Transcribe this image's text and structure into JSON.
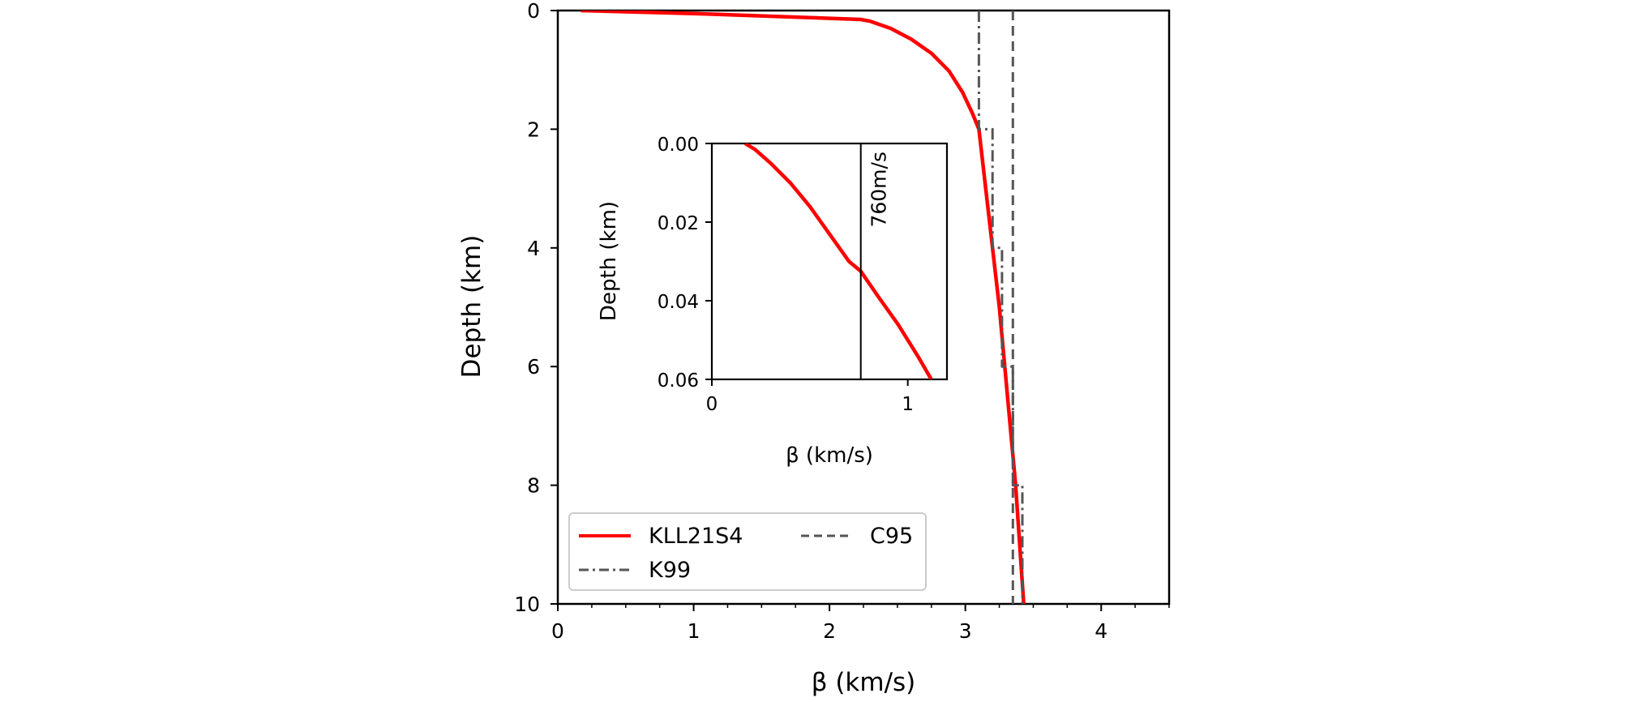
{
  "chart_data": [
    {
      "type": "line",
      "xlabel": "β (km/s)",
      "ylabel": "Depth (km)",
      "xlim": [
        0,
        4.5
      ],
      "ylim": [
        10,
        0
      ],
      "y_inverted": true,
      "x_ticks": [
        "0",
        "1",
        "2",
        "3",
        "4"
      ],
      "y_ticks": [
        "0",
        "2",
        "4",
        "6",
        "8",
        "10"
      ],
      "legend": {
        "placement": "lower-left",
        "columns": 2,
        "entries": [
          "KLL21S4",
          "C95",
          "K99"
        ]
      },
      "series": [
        {
          "name": "KLL21S4",
          "style": "solid",
          "color": "#ff0000",
          "points": [
            [
              0.17,
              0.0
            ],
            [
              1.0,
              0.05
            ],
            [
              2.23,
              0.15
            ],
            [
              2.3,
              0.18
            ],
            [
              2.45,
              0.3
            ],
            [
              2.6,
              0.48
            ],
            [
              2.75,
              0.72
            ],
            [
              2.88,
              1.02
            ],
            [
              2.98,
              1.38
            ],
            [
              3.05,
              1.72
            ],
            [
              3.1,
              2.0
            ],
            [
              3.15,
              3.0
            ],
            [
              3.2,
              4.0
            ],
            [
              3.25,
              5.0
            ],
            [
              3.29,
              6.0
            ],
            [
              3.33,
              7.0
            ],
            [
              3.37,
              8.0
            ],
            [
              3.4,
              9.0
            ],
            [
              3.43,
              10.0
            ]
          ]
        },
        {
          "name": "C95",
          "style": "dashed",
          "color": "#555555",
          "points": [
            [
              3.35,
              0.0
            ],
            [
              3.35,
              10.0
            ]
          ]
        },
        {
          "name": "K99",
          "style": "dashdot",
          "color": "#555555",
          "points": [
            [
              3.1,
              0.0
            ],
            [
              3.1,
              2.0
            ],
            [
              3.2,
              2.0
            ],
            [
              3.2,
              4.0
            ],
            [
              3.27,
              4.0
            ],
            [
              3.27,
              6.0
            ],
            [
              3.35,
              6.0
            ],
            [
              3.35,
              8.0
            ],
            [
              3.42,
              8.0
            ],
            [
              3.42,
              10.0
            ]
          ]
        }
      ]
    },
    {
      "type": "line",
      "xlabel": "β (km/s)",
      "ylabel": "Depth (km)",
      "xlim": [
        0,
        1.2
      ],
      "ylim": [
        0.06,
        0.0
      ],
      "y_inverted": true,
      "x_ticks": [
        "0",
        "1"
      ],
      "y_ticks": [
        "0.00",
        "0.02",
        "0.04",
        "0.06"
      ],
      "annotation": {
        "text": "760m/s",
        "x": 0.76
      },
      "series": [
        {
          "name": "",
          "style": "solid",
          "color": "#ff0000",
          "points": [
            [
              0.17,
              0.0
            ],
            [
              0.22,
              0.0015
            ],
            [
              0.3,
              0.005
            ],
            [
              0.4,
              0.01
            ],
            [
              0.5,
              0.016
            ],
            [
              0.6,
              0.023
            ],
            [
              0.7,
              0.03
            ],
            [
              0.76,
              0.0325
            ],
            [
              0.85,
              0.039
            ],
            [
              0.95,
              0.046
            ],
            [
              1.05,
              0.054
            ],
            [
              1.12,
              0.06
            ]
          ]
        },
        {
          "name": "",
          "style": "solid",
          "color": "#000000",
          "points": [
            [
              0.76,
              0.0
            ],
            [
              0.76,
              0.06
            ]
          ]
        }
      ]
    }
  ]
}
